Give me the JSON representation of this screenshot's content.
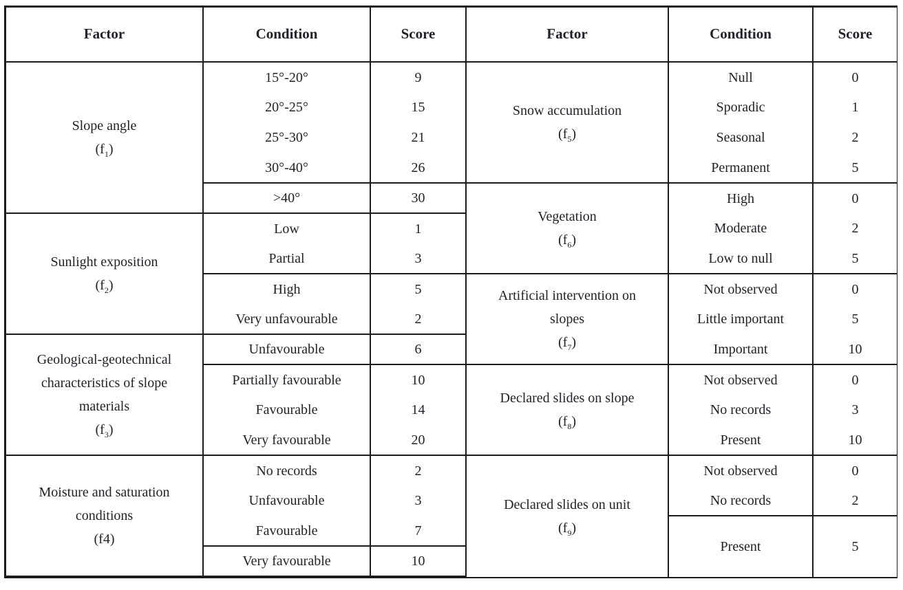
{
  "headers": {
    "factor": "Factor",
    "condition": "Condition",
    "score": "Score"
  },
  "tables": [
    {
      "side": "left",
      "groups": [
        {
          "factor_lines": [
            "Slope angle",
            {
              "pre": "(f",
              "sub": "1",
              "post": ")"
            }
          ],
          "rows": [
            {
              "condition": "15°-20°",
              "score": "9"
            },
            {
              "condition": "20°-25°",
              "score": "15"
            },
            {
              "condition": "25°-30°",
              "score": "21"
            },
            {
              "condition": "30°-40°",
              "score": "26",
              "divider_after": true
            },
            {
              "condition": ">40°",
              "score": "30"
            }
          ]
        },
        {
          "factor_lines": [
            "Sunlight exposition",
            {
              "pre": "(f",
              "sub": "2",
              "post": ")"
            }
          ],
          "rows": [
            {
              "condition": "Low",
              "score": "1"
            },
            {
              "condition": "Partial",
              "score": "3",
              "divider_after": true
            },
            {
              "condition": "High",
              "score": "5"
            },
            {
              "condition": "Very unfavourable",
              "score": "2"
            }
          ]
        },
        {
          "factor_lines": [
            "Geological-geotechnical",
            "characteristics of slope",
            "materials",
            {
              "pre": "(f",
              "sub": "3",
              "post": ")"
            }
          ],
          "rows": [
            {
              "condition": "Unfavourable",
              "score": "6",
              "divider_after": true
            },
            {
              "condition": "Partially favourable",
              "score": "10"
            },
            {
              "condition": "Favourable",
              "score": "14"
            },
            {
              "condition": "Very favourable",
              "score": "20"
            }
          ]
        },
        {
          "factor_lines": [
            "Moisture and saturation",
            "conditions",
            "(f4)"
          ],
          "rows": [
            {
              "condition": "No records",
              "score": "2"
            },
            {
              "condition": "Unfavourable",
              "score": "3"
            },
            {
              "condition": "Favourable",
              "score": "7",
              "divider_after": true
            },
            {
              "condition": "Very favourable",
              "score": "10"
            }
          ]
        }
      ]
    },
    {
      "side": "right",
      "groups": [
        {
          "factor_lines": [
            "Snow accumulation",
            {
              "pre": "(f",
              "sub": "5",
              "post": ")"
            }
          ],
          "rows": [
            {
              "condition": "Null",
              "score": "0"
            },
            {
              "condition": "Sporadic",
              "score": "1"
            },
            {
              "condition": "Seasonal",
              "score": "2"
            },
            {
              "condition": "Permanent",
              "score": "5"
            }
          ]
        },
        {
          "factor_lines": [
            "Vegetation",
            {
              "pre": "(f",
              "sub": "6",
              "post": ")"
            }
          ],
          "rows": [
            {
              "condition": "High",
              "score": "0"
            },
            {
              "condition": "Moderate",
              "score": "2"
            },
            {
              "condition": "Low to null",
              "score": "5"
            }
          ]
        },
        {
          "factor_lines": [
            "Artificial intervention on",
            "slopes",
            {
              "pre": "(f",
              "sub": "7",
              "post": ")"
            }
          ],
          "rows": [
            {
              "condition": "Not observed",
              "score": "0"
            },
            {
              "condition": "Little important",
              "score": "5"
            },
            {
              "condition": "Important",
              "score": "10"
            }
          ]
        },
        {
          "factor_lines": [
            "Declared slides on slope",
            {
              "pre": "(f",
              "sub": "8",
              "post": ")"
            }
          ],
          "rows": [
            {
              "condition": "Not observed",
              "score": "0"
            },
            {
              "condition": "No records",
              "score": "3"
            },
            {
              "condition": "Present",
              "score": "10"
            }
          ]
        },
        {
          "factor_lines": [
            "Declared slides on unit",
            {
              "pre": "(f",
              "sub": "9",
              "post": ")"
            }
          ],
          "rows": [
            {
              "condition": "Not observed",
              "score": "0"
            },
            {
              "condition": "No records",
              "score": "2",
              "divider_after": true
            },
            {
              "condition": "Present",
              "score": "5",
              "tall": true
            }
          ]
        }
      ]
    }
  ]
}
